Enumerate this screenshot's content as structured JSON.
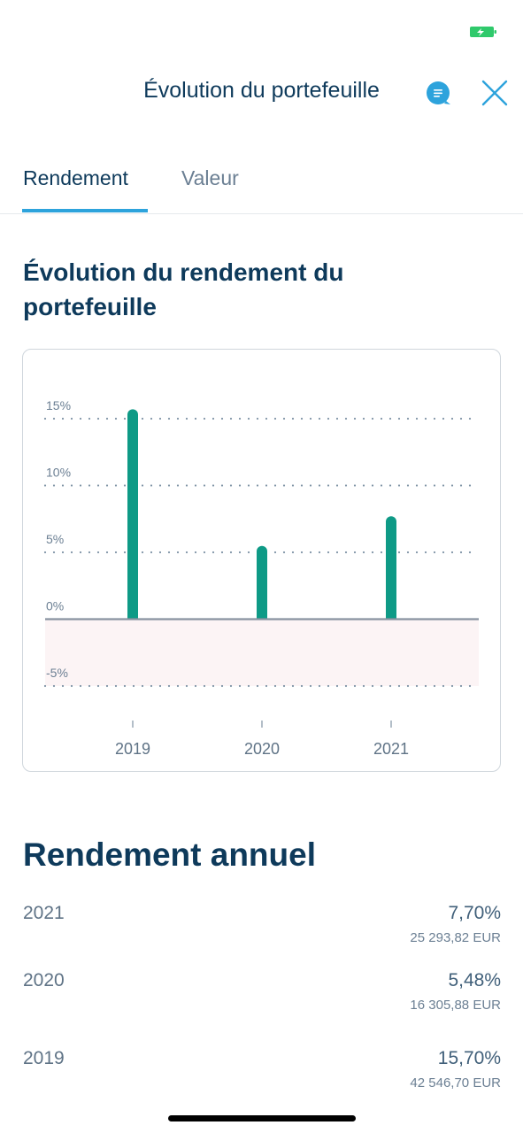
{
  "header": {
    "title": "Évolution du portefeuille"
  },
  "tabs": [
    {
      "label": "Rendement",
      "active": true
    },
    {
      "label": "Valeur",
      "active": false
    }
  ],
  "section": {
    "title": "Évolution du rendement du portefeuille"
  },
  "icons": {
    "chat": "chat-bubble-icon",
    "close": "close-icon",
    "battery": "battery-charging-icon"
  },
  "colors": {
    "accent": "#2da3dc",
    "bar": "#0e9a86",
    "title": "#0e3a5b",
    "negative_zone": "#fcf4f5"
  },
  "chart_data": {
    "type": "bar",
    "categories": [
      "2019",
      "2020",
      "2021"
    ],
    "values": [
      15.7,
      5.48,
      7.7
    ],
    "ylim": [
      -5,
      15
    ],
    "yticks": [
      15,
      10,
      5,
      0,
      -5
    ],
    "ytick_labels": [
      "15%",
      "10%",
      "5%",
      "0%",
      "-5%"
    ],
    "grid": true,
    "title": "",
    "xlabel": "",
    "ylabel": ""
  },
  "annual": {
    "title": "Rendement annuel",
    "rows": [
      {
        "year": "2021",
        "pct": "7,70%",
        "amount": "25 293,82 EUR"
      },
      {
        "year": "2020",
        "pct": "5,48%",
        "amount": "16 305,88 EUR"
      },
      {
        "year": "2019",
        "pct": "15,70%",
        "amount": "42 546,70 EUR"
      }
    ]
  }
}
